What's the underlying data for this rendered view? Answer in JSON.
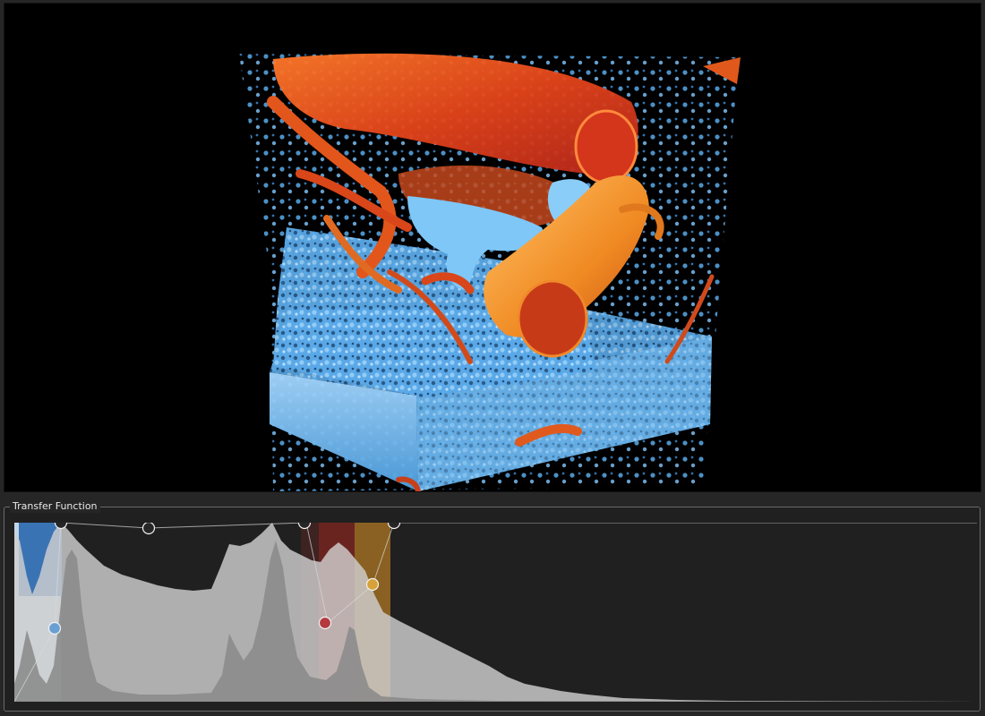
{
  "panel": {
    "title": "Transfer Function"
  },
  "colors": {
    "background": "#262626",
    "viewport_background": "#000000",
    "histogram_fill": "#a6a6a6",
    "histogram_log_fill": "#c9c9c9",
    "bone_blue": "#6ab7ee",
    "vessel_orange": "#e5521a",
    "vessel_red": "#b52b2b",
    "vessel_gold": "#e2a432"
  },
  "transfer_function": {
    "color_map_stops": [
      {
        "color": "#2f6db3",
        "label": "blue"
      },
      {
        "color": "#c0242a",
        "label": "red"
      },
      {
        "color": "#d39b1e",
        "label": "gold"
      }
    ],
    "control_points": [
      {
        "name": "control-point-1",
        "color": "#6b9fd4"
      },
      {
        "name": "control-point-2",
        "color": "#262626"
      },
      {
        "name": "control-point-3",
        "color": "#262626"
      },
      {
        "name": "control-point-4",
        "color": "#262626"
      },
      {
        "name": "control-point-5",
        "color": "#b43a3f"
      },
      {
        "name": "control-point-6",
        "color": "#d7a23a"
      },
      {
        "name": "control-point-7",
        "color": "#262626"
      }
    ]
  }
}
